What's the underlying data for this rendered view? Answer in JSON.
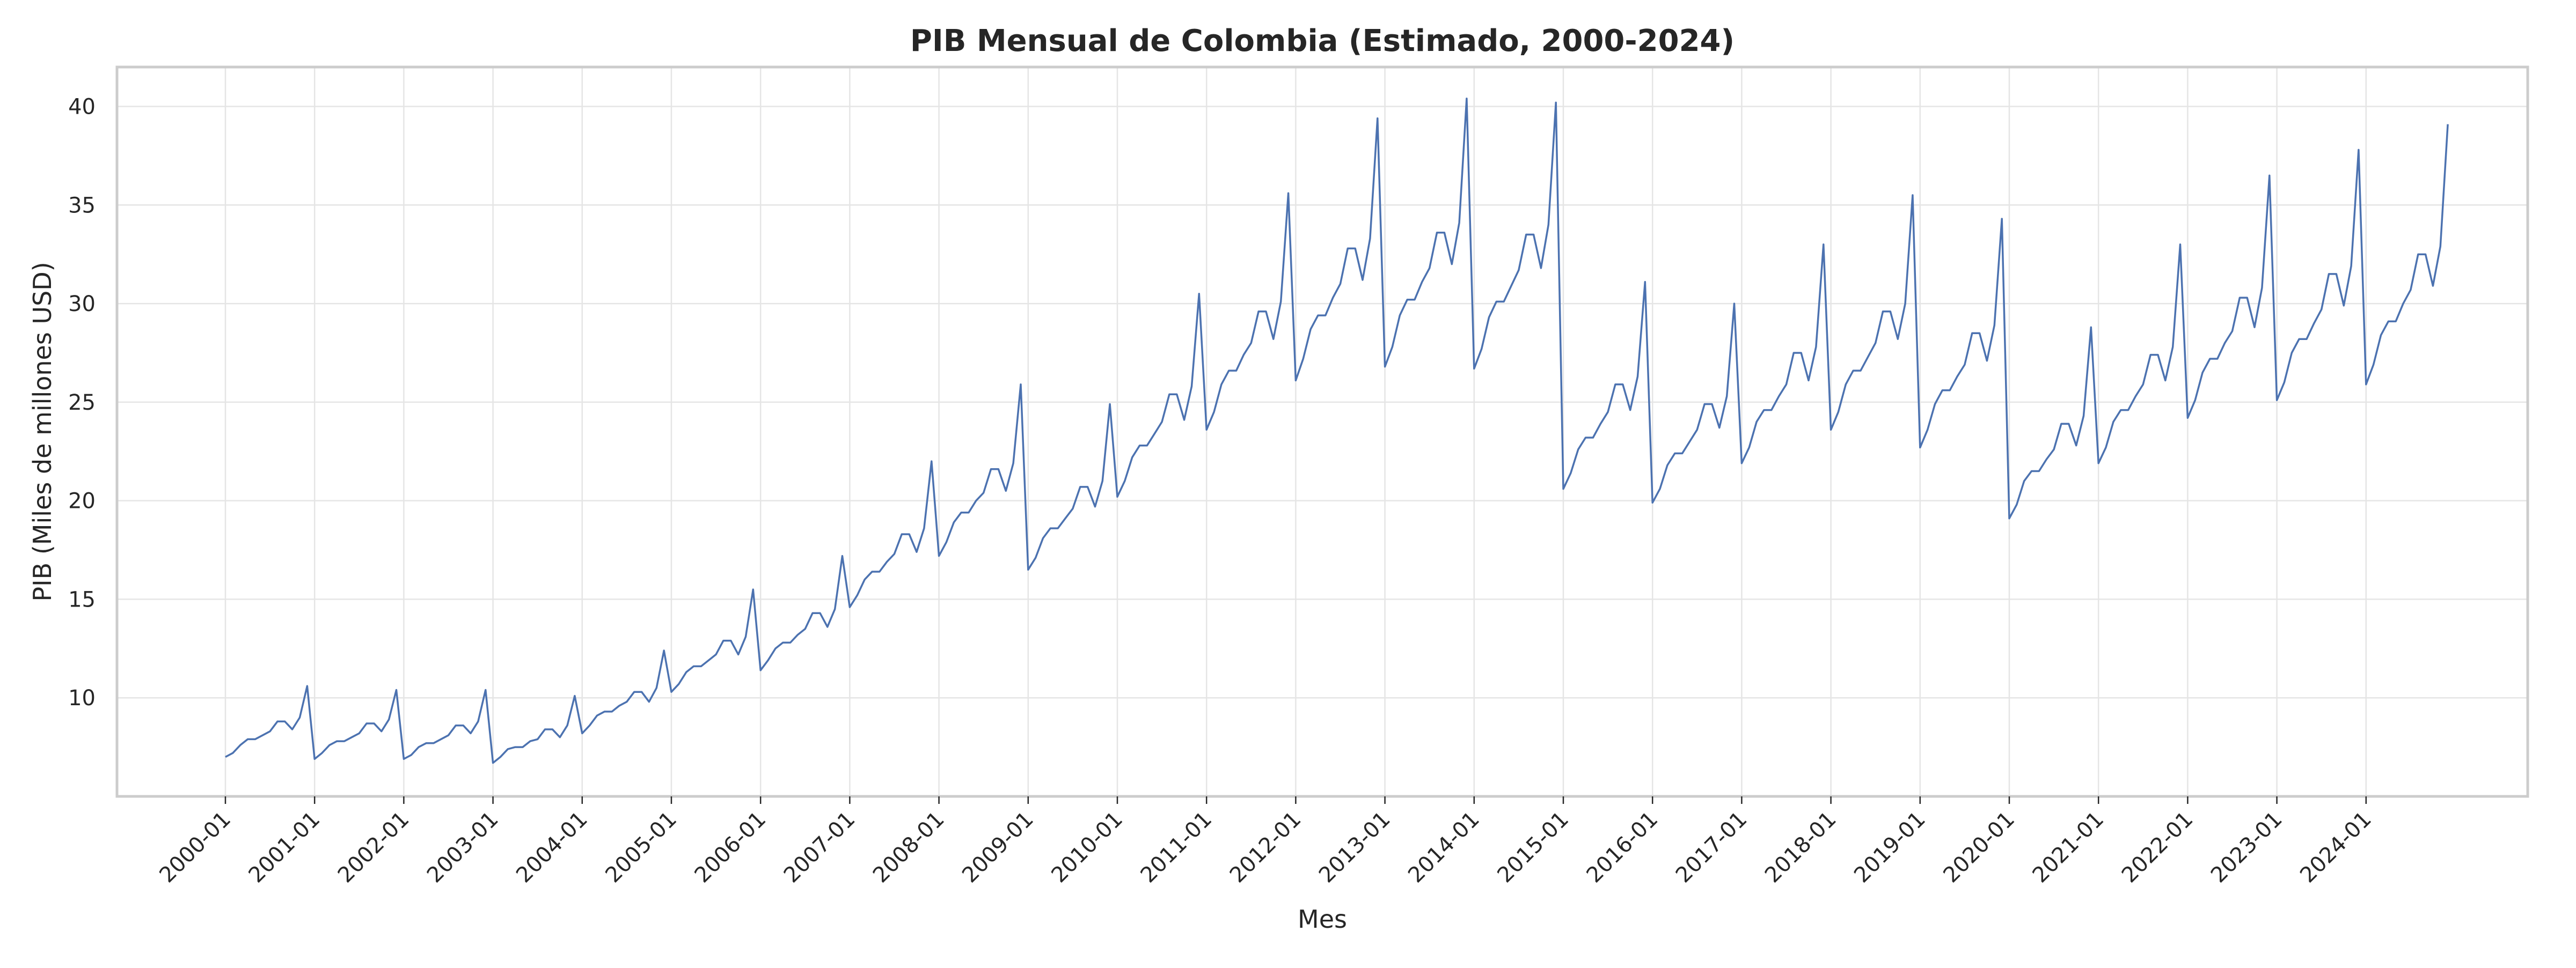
{
  "chart_data": {
    "type": "line",
    "title": "PIB Mensual de Colombia (Estimado, 2000-2024)",
    "xlabel": "Mes",
    "ylabel": "PIB (Miles de millones USD)",
    "ylim": [
      5,
      42
    ],
    "yticks": [
      10,
      15,
      20,
      25,
      30,
      35,
      40
    ],
    "x_start": "2000-01",
    "x_end": "2024-12",
    "xtick_labels": [
      "2000-01",
      "2001-01",
      "2002-01",
      "2003-01",
      "2004-01",
      "2005-01",
      "2006-01",
      "2007-01",
      "2008-01",
      "2009-01",
      "2010-01",
      "2011-01",
      "2012-01",
      "2013-01",
      "2014-01",
      "2015-01",
      "2016-01",
      "2017-01",
      "2018-01",
      "2019-01",
      "2020-01",
      "2021-01",
      "2022-01",
      "2023-01",
      "2024-01"
    ],
    "grid": true,
    "color": "#4c72b0",
    "series": [
      {
        "values": [
          7.0,
          7.2,
          7.6,
          7.9,
          7.9,
          8.1,
          8.3,
          8.8,
          8.8,
          8.4,
          9.0,
          10.6,
          6.9,
          7.2,
          7.6,
          7.8,
          7.8,
          8.0,
          8.2,
          8.7,
          8.7,
          8.3,
          8.9,
          10.4,
          6.9,
          7.1,
          7.5,
          7.7,
          7.7,
          7.9,
          8.1,
          8.6,
          8.6,
          8.2,
          8.8,
          10.4,
          6.7,
          7.0,
          7.4,
          7.5,
          7.5,
          7.8,
          7.9,
          8.4,
          8.4,
          8.0,
          8.6,
          10.1,
          8.2,
          8.6,
          9.1,
          9.3,
          9.3,
          9.6,
          9.8,
          10.3,
          10.3,
          9.8,
          10.5,
          12.4,
          10.3,
          10.7,
          11.3,
          11.6,
          11.6,
          11.9,
          12.2,
          12.9,
          12.9,
          12.2,
          13.1,
          15.5,
          11.4,
          11.9,
          12.5,
          12.8,
          12.8,
          13.2,
          13.5,
          14.3,
          14.3,
          13.6,
          14.5,
          17.2,
          14.6,
          15.2,
          16.0,
          16.4,
          16.4,
          16.9,
          17.3,
          18.3,
          18.3,
          17.4,
          18.6,
          22.0,
          17.2,
          17.9,
          18.9,
          19.4,
          19.4,
          20.0,
          20.4,
          21.6,
          21.6,
          20.5,
          21.9,
          25.9,
          16.5,
          17.1,
          18.1,
          18.6,
          18.6,
          19.1,
          19.6,
          20.7,
          20.7,
          19.7,
          21.0,
          24.9,
          20.2,
          21.0,
          22.2,
          22.8,
          22.8,
          23.4,
          24.0,
          25.4,
          25.4,
          24.1,
          25.8,
          30.5,
          23.6,
          24.5,
          25.9,
          26.6,
          26.6,
          27.4,
          28.0,
          29.6,
          29.6,
          28.2,
          30.1,
          35.6,
          26.1,
          27.2,
          28.7,
          29.4,
          29.4,
          30.3,
          31.0,
          32.8,
          32.8,
          31.2,
          33.3,
          39.4,
          26.8,
          27.8,
          29.4,
          30.2,
          30.2,
          31.1,
          31.8,
          33.6,
          33.6,
          32.0,
          34.1,
          40.4,
          26.7,
          27.7,
          29.3,
          30.1,
          30.1,
          30.9,
          31.7,
          33.5,
          33.5,
          31.8,
          34.0,
          40.2,
          20.6,
          21.4,
          22.6,
          23.2,
          23.2,
          23.9,
          24.5,
          25.9,
          25.9,
          24.6,
          26.3,
          31.1,
          19.9,
          20.6,
          21.8,
          22.4,
          22.4,
          23.0,
          23.6,
          24.9,
          24.9,
          23.7,
          25.3,
          30.0,
          21.9,
          22.7,
          24.0,
          24.6,
          24.6,
          25.3,
          25.9,
          27.5,
          27.5,
          26.1,
          27.8,
          33.0,
          23.6,
          24.5,
          25.9,
          26.6,
          26.6,
          27.3,
          28.0,
          29.6,
          29.6,
          28.2,
          30.0,
          35.5,
          22.7,
          23.6,
          24.9,
          25.6,
          25.6,
          26.3,
          26.9,
          28.5,
          28.5,
          27.1,
          28.9,
          34.3,
          19.1,
          19.8,
          21.0,
          21.5,
          21.5,
          22.1,
          22.6,
          23.9,
          23.9,
          22.8,
          24.3,
          28.8,
          21.9,
          22.7,
          24.0,
          24.6,
          24.6,
          25.3,
          25.9,
          27.4,
          27.4,
          26.1,
          27.8,
          33.0,
          24.2,
          25.1,
          26.5,
          27.2,
          27.2,
          28.0,
          28.6,
          30.3,
          30.3,
          28.8,
          30.8,
          36.5,
          25.1,
          26.0,
          27.5,
          28.2,
          28.2,
          29.0,
          29.7,
          31.5,
          31.5,
          29.9,
          31.9,
          37.8,
          25.9,
          26.9,
          28.4,
          29.1,
          29.1,
          30.0,
          30.7,
          32.5,
          32.5,
          30.9,
          32.9,
          39.1
        ]
      }
    ]
  }
}
